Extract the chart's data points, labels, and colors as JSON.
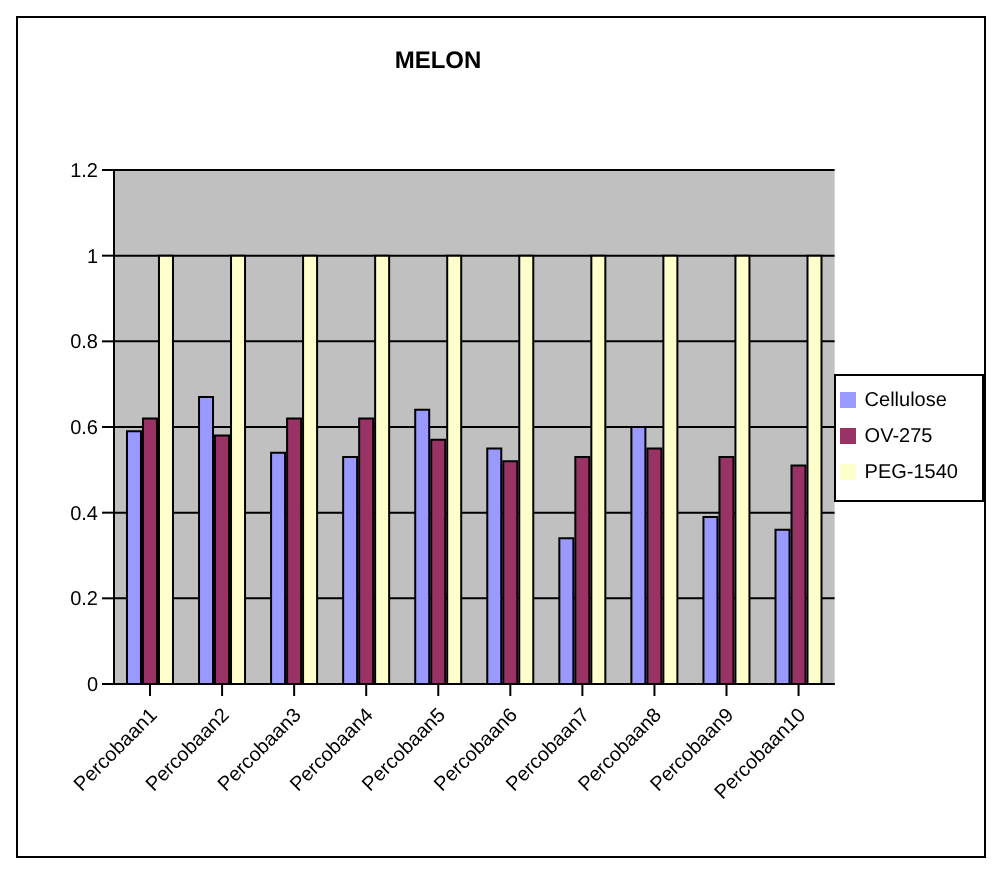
{
  "chart_data": {
    "type": "bar",
    "title": "MELON",
    "categories": [
      "Percobaan1",
      "Percobaan2",
      "Percobaan3",
      "Percobaan4",
      "Percobaan5",
      "Percobaan6",
      "Percobaan7",
      "Percobaan8",
      "Percobaan9",
      "Percobaan10"
    ],
    "series": [
      {
        "name": "Cellulose",
        "color": "#9999ff",
        "values": [
          0.59,
          0.67,
          0.54,
          0.53,
          0.64,
          0.55,
          0.34,
          0.6,
          0.39,
          0.36
        ]
      },
      {
        "name": "OV-275",
        "color": "#993366",
        "values": [
          0.62,
          0.58,
          0.62,
          0.62,
          0.57,
          0.52,
          0.53,
          0.55,
          0.53,
          0.51
        ]
      },
      {
        "name": "PEG-1540",
        "color": "#ffffcc",
        "values": [
          1,
          1,
          1,
          1,
          1,
          1,
          1,
          1,
          1,
          1
        ]
      }
    ],
    "ylim": [
      0,
      1.2
    ],
    "yticks": [
      0,
      0.2,
      0.4,
      0.6,
      0.8,
      1,
      1.2
    ],
    "grid": "y",
    "legend": "right"
  }
}
